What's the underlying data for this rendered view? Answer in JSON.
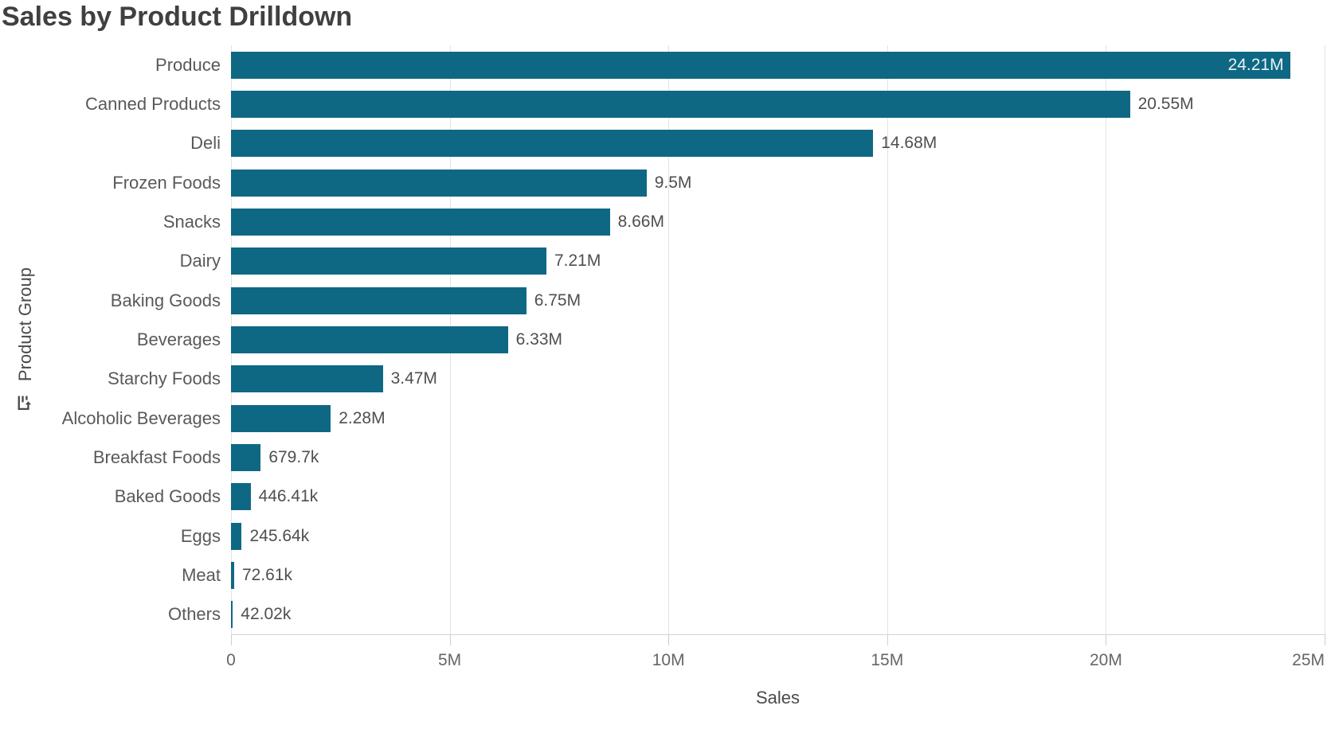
{
  "title": "Sales by Product Drilldown",
  "colors": {
    "bar": "#0e6883",
    "value_label_inside": "#e8f3f6",
    "value_label_outside": "#4f4f4f"
  },
  "y_axis": {
    "label": "Product Group",
    "icon": "drilldown-icon"
  },
  "x_axis": {
    "label": "Sales",
    "max": 25000000,
    "ticks": [
      {
        "value": 0,
        "label": "0"
      },
      {
        "value": 5000000,
        "label": "5M"
      },
      {
        "value": 10000000,
        "label": "10M"
      },
      {
        "value": 15000000,
        "label": "15M"
      },
      {
        "value": 20000000,
        "label": "20M"
      },
      {
        "value": 25000000,
        "label": "25M"
      }
    ]
  },
  "chart_data": {
    "type": "bar",
    "orientation": "horizontal",
    "title": "Sales by Product Drilldown",
    "xlabel": "Sales",
    "ylabel": "Product Group",
    "xlim": [
      0,
      25000000
    ],
    "x_tick_labels": [
      "0",
      "5M",
      "10M",
      "15M",
      "20M",
      "25M"
    ],
    "grid": true,
    "legend": false,
    "categories": [
      "Produce",
      "Canned Products",
      "Deli",
      "Frozen Foods",
      "Snacks",
      "Dairy",
      "Baking Goods",
      "Beverages",
      "Starchy Foods",
      "Alcoholic Beverages",
      "Breakfast Foods",
      "Baked Goods",
      "Eggs",
      "Meat",
      "Others"
    ],
    "values": [
      24210000,
      20550000,
      14680000,
      9500000,
      8660000,
      7210000,
      6750000,
      6330000,
      3470000,
      2280000,
      679700,
      446410,
      245640,
      72610,
      42020
    ],
    "value_labels": [
      "24.21M",
      "20.55M",
      "14.68M",
      "9.5M",
      "8.66M",
      "7.21M",
      "6.75M",
      "6.33M",
      "3.47M",
      "2.28M",
      "679.7k",
      "446.41k",
      "245.64k",
      "72.61k",
      "42.02k"
    ]
  }
}
